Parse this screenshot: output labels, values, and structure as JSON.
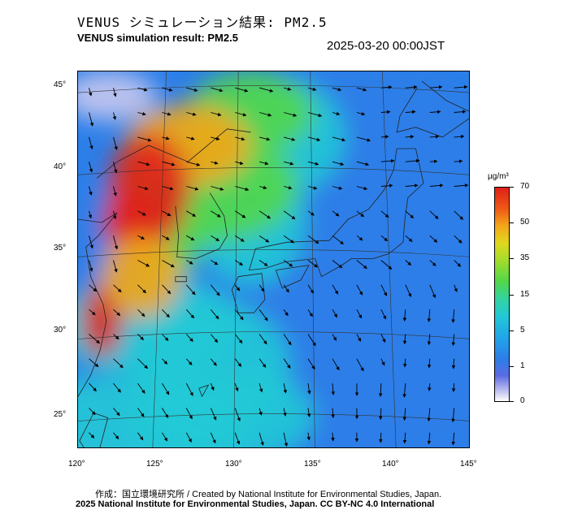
{
  "header": {
    "title_jp": "VENUS シミュレーション結果: PM2.5",
    "title_en": "VENUS simulation result: PM2.5",
    "datetime": "2025-03-20 00:00JST"
  },
  "map": {
    "lon_labels": [
      "120°",
      "125°",
      "130°",
      "135°",
      "140°",
      "145°"
    ],
    "lat_labels": [
      "45°",
      "40°",
      "35°",
      "30°",
      "25°"
    ],
    "lon_range": [
      120,
      145
    ],
    "lat_range": [
      23,
      46
    ],
    "field_colors": {
      "very_high": "#e0201a",
      "high": "#f4a61a",
      "medium": "#52d64a",
      "low": "#22c9d6",
      "very_low": "#2c7ee8",
      "clean": "#c9c9f0"
    }
  },
  "colorbar": {
    "unit": "µg/m³",
    "ticks": [
      "70",
      "50",
      "35",
      "15",
      "5",
      "1",
      "0"
    ]
  },
  "footer": {
    "credit_line1": "作成：国立環境研究所 / Created by National Institute for Environmental Studies, Japan.",
    "credit_line2": "2025 National Institute for Environmental Studies, Japan. CC BY-NC 4.0 International"
  }
}
